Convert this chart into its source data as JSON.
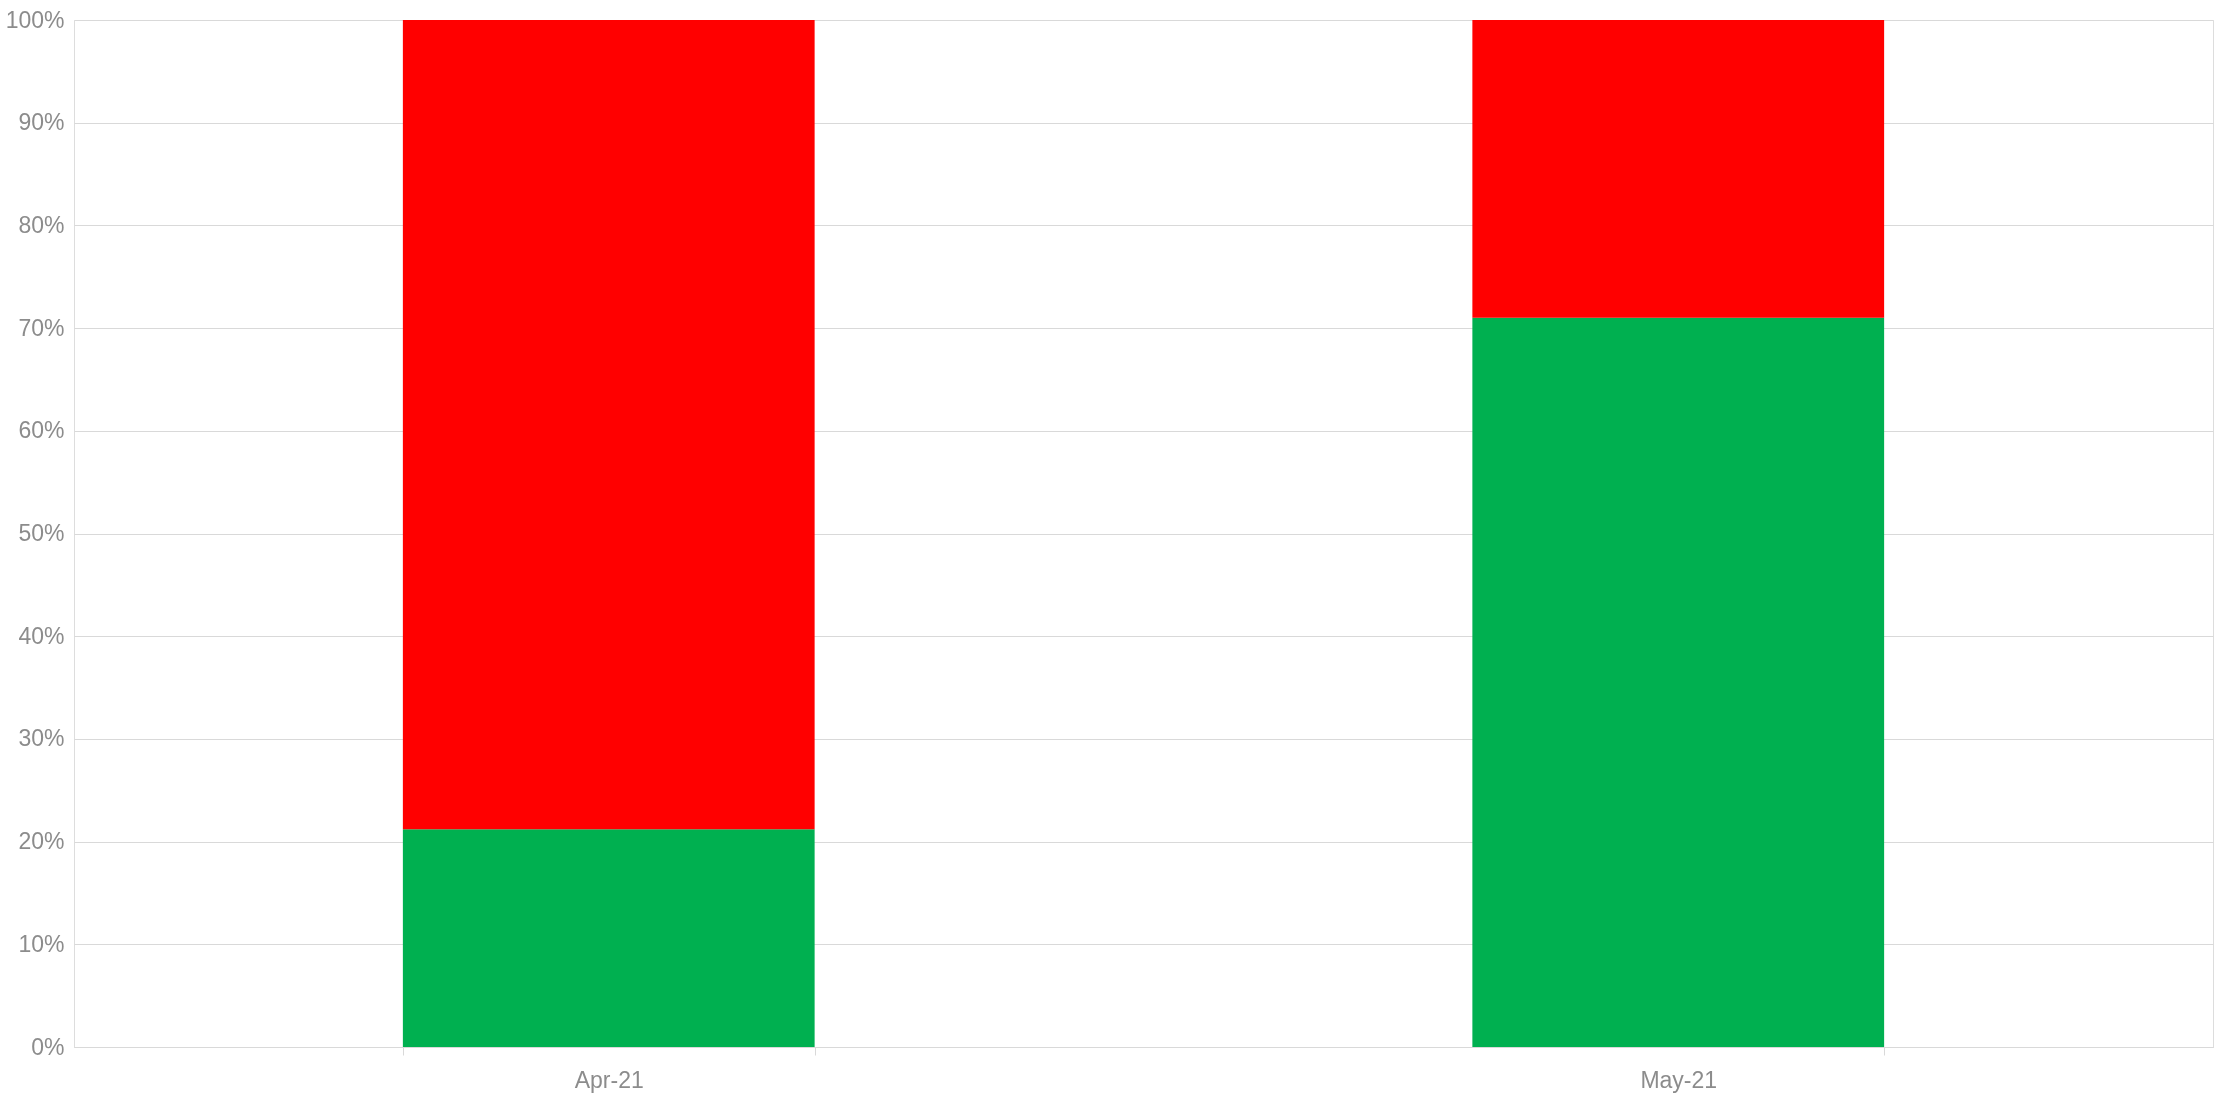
{
  "chart_data": {
    "type": "bar",
    "stacked": true,
    "categories": [
      "Apr-21",
      "May-21"
    ],
    "series": [
      {
        "color": "#00b050",
        "values": [
          21.2,
          71.0
        ]
      },
      {
        "color": "#ff0000",
        "values": [
          78.8,
          29.0
        ]
      }
    ],
    "ylim": [
      0,
      100
    ],
    "yticks": [
      {
        "value": 0,
        "label": "0%"
      },
      {
        "value": 10,
        "label": "10%"
      },
      {
        "value": 20,
        "label": "20%"
      },
      {
        "value": 30,
        "label": "30%"
      },
      {
        "value": 40,
        "label": "40%"
      },
      {
        "value": 50,
        "label": "50%"
      },
      {
        "value": 60,
        "label": "60%"
      },
      {
        "value": 70,
        "label": "70%"
      },
      {
        "value": 80,
        "label": "80%"
      },
      {
        "value": 90,
        "label": "90%"
      },
      {
        "value": 100,
        "label": "100%"
      }
    ],
    "grid": "y",
    "legend": false
  }
}
